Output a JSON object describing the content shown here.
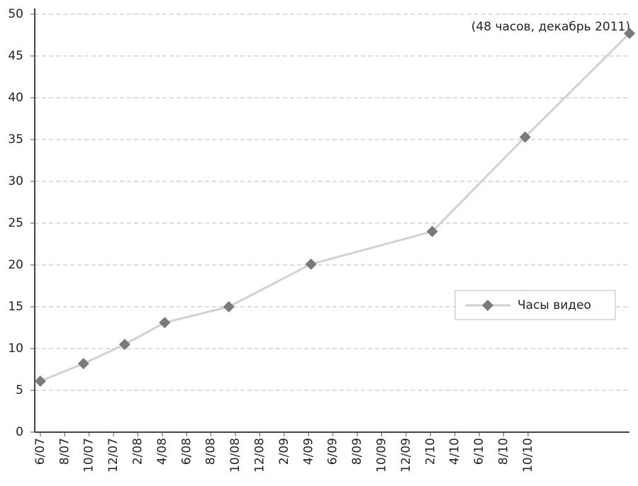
{
  "chart_data": {
    "type": "line",
    "annotation": "(48 часов, декабрь 2011)",
    "x": [
      0,
      1.77,
      3.46,
      5.1,
      7.73,
      11.1,
      16.07,
      19.88,
      24.16
    ],
    "series": [
      {
        "name": "Часы видео",
        "color": "#d2d2d2",
        "marker_color": "#7a7a7a",
        "values": [
          6.1,
          8.2,
          10.5,
          13.1,
          15.0,
          20.1,
          24.0,
          35.3,
          47.7
        ]
      }
    ],
    "xlim": [
      -0.23,
      24.16
    ],
    "xticks": [
      {
        "value": 0,
        "label": "6/07"
      },
      {
        "value": 1,
        "label": "8/07"
      },
      {
        "value": 2,
        "label": "10/07"
      },
      {
        "value": 3,
        "label": "12/07"
      },
      {
        "value": 4,
        "label": "2/08"
      },
      {
        "value": 5,
        "label": "4/08"
      },
      {
        "value": 6,
        "label": "6/08"
      },
      {
        "value": 7,
        "label": "8/08"
      },
      {
        "value": 8,
        "label": "10/08"
      },
      {
        "value": 9,
        "label": "12/08"
      },
      {
        "value": 10,
        "label": "2/09"
      },
      {
        "value": 11,
        "label": "4/09"
      },
      {
        "value": 12,
        "label": "6/09"
      },
      {
        "value": 13,
        "label": "8/09"
      },
      {
        "value": 14,
        "label": "10/09"
      },
      {
        "value": 15,
        "label": "12/09"
      },
      {
        "value": 16,
        "label": "2/10"
      },
      {
        "value": 17,
        "label": "4/10"
      },
      {
        "value": 18,
        "label": "6/10"
      },
      {
        "value": 19,
        "label": "8/10"
      },
      {
        "value": 20,
        "label": "10/10"
      }
    ],
    "ylim": [
      0,
      50
    ],
    "yticks": [
      0,
      5,
      10,
      15,
      20,
      25,
      30,
      35,
      40,
      45,
      50
    ],
    "grid": true,
    "legend": "right"
  }
}
